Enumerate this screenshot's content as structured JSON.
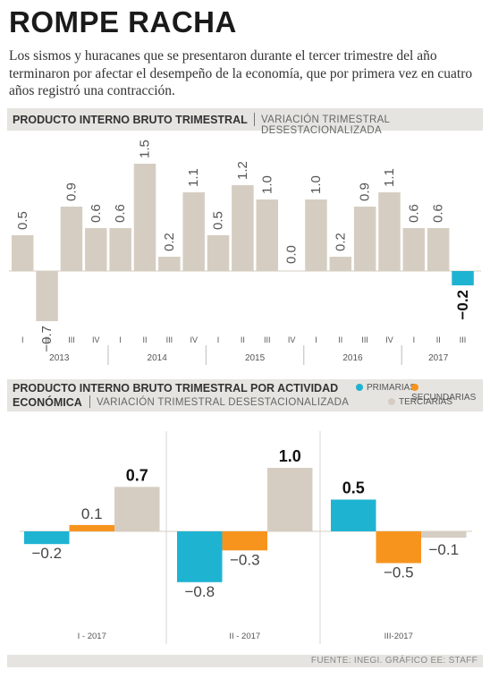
{
  "title": "ROMPE RACHA",
  "intro": "Los sismos y huracanes que se presentaron durante el tercer trimestre del año terminaron por afectar el desempeño de la economía, que por primera vez en cuatro años registró una contracción.",
  "chart1_header": {
    "title": "PRODUCTO INTERNO BRUTO TRIMESTRAL",
    "subtitle": "VARIACIÓN TRIMESTRAL DESESTACIONALIZADA"
  },
  "chart2_header": {
    "title_line1": "PRODUCTO INTERNO BRUTO TRIMESTRAL POR ACTIVIDAD",
    "title_line2": "ECONÓMICA",
    "subtitle": "VARIACIÓN TRIMESTRAL DESESTACIONALIZADA"
  },
  "legend": {
    "primarias": "PRIMARIAS",
    "secundarias": "SECUNDARIAS",
    "terciarias": "TERCIARIAS"
  },
  "footer": "FUENTE: INEGI. GRÁFICO EE: STAFF",
  "colors": {
    "bar": "#d6cdc2",
    "highlight": "#1fb3d2",
    "primarias": "#1fb3d2",
    "secundarias": "#f7941d",
    "terciarias": "#d6cdc2",
    "header_bg": "#e6e4e0"
  },
  "chart_data": [
    {
      "type": "bar",
      "quarters": [
        "I",
        "II",
        "III",
        "IV",
        "I",
        "II",
        "III",
        "IV",
        "I",
        "II",
        "III",
        "IV",
        "I",
        "II",
        "III",
        "IV",
        "I",
        "II",
        "III"
      ],
      "years": [
        "2013",
        "2014",
        "2015",
        "2016",
        "2017"
      ],
      "values": [
        0.5,
        -0.7,
        0.9,
        0.6,
        0.6,
        1.5,
        0.2,
        1.1,
        0.5,
        1.2,
        1.0,
        0.0,
        1.0,
        0.2,
        0.9,
        1.1,
        0.6,
        0.6,
        -0.2
      ],
      "labels": [
        "0.5",
        "−0.7",
        "0.9",
        "0.6",
        "0.6",
        "1.5",
        "0.2",
        "1.1",
        "0.5",
        "1.2",
        "1.0",
        "0.0",
        "1.0",
        "0.2",
        "0.9",
        "1.1",
        "0.6",
        "0.6",
        "−0.2"
      ],
      "highlight_index": 18
    },
    {
      "type": "bar",
      "categories": [
        "I - 2017",
        "II - 2017",
        "III-2017"
      ],
      "series": [
        {
          "name": "PRIMARIAS",
          "values": [
            -0.2,
            -0.8,
            0.5
          ],
          "labels": [
            "−0.2",
            "−0.8",
            "0.5"
          ]
        },
        {
          "name": "SECUNDARIAS",
          "values": [
            0.1,
            -0.3,
            -0.5
          ],
          "labels": [
            "0.1",
            "−0.3",
            "−0.5"
          ]
        },
        {
          "name": "TERCIARIAS",
          "values": [
            0.7,
            1.0,
            -0.1
          ],
          "labels": [
            "0.7",
            "1.0",
            "−0.1"
          ]
        }
      ],
      "bold_labels": [
        "0.7",
        "1.0",
        "0.5"
      ]
    }
  ]
}
